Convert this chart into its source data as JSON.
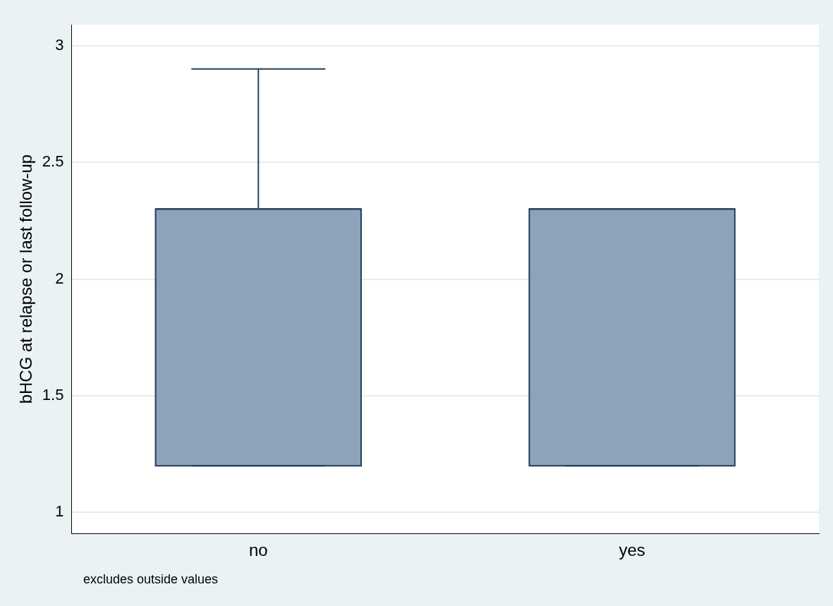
{
  "chart_data": {
    "type": "box",
    "ylabel": "bHCG at relapse or last follow-up",
    "categories": [
      "no",
      "yes"
    ],
    "boxes": [
      {
        "low": 1.2,
        "q1": 1.2,
        "median": 2.3,
        "q3": 2.3,
        "high": 2.9
      },
      {
        "low": 1.2,
        "q1": 1.2,
        "median": 2.3,
        "q3": 2.3,
        "high": 2.3
      }
    ],
    "color": "#8ea3b8",
    "ylim": [
      0.91,
      3.09
    ],
    "yticks": [
      1,
      1.5,
      2,
      2.5,
      3
    ],
    "grid": "y",
    "legend": false,
    "annotations": [
      "excludes outside values"
    ]
  }
}
